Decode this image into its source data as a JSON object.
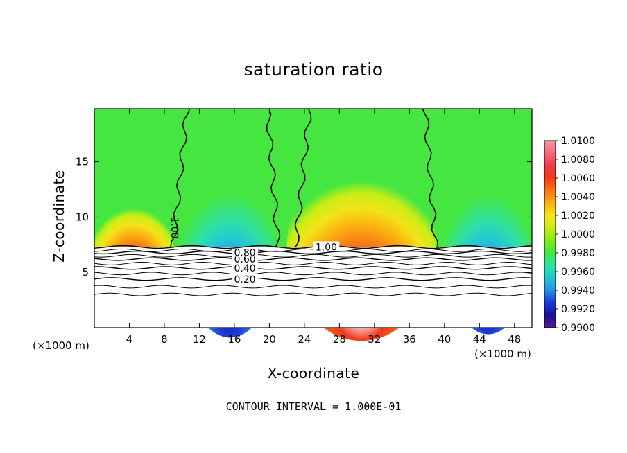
{
  "chart_data": {
    "type": "heatmap",
    "title": "saturation ratio",
    "xlabel": "X-coordinate",
    "ylabel": "Z-coordinate",
    "x_unit_label": "(×1000 m)",
    "x_unit_label_right": "(×1000 m)",
    "xlim": [
      0,
      50
    ],
    "ylim": [
      0,
      19.8
    ],
    "x_ticks": [
      4,
      8,
      12,
      16,
      20,
      24,
      28,
      32,
      36,
      40,
      44,
      48
    ],
    "y_ticks": [
      5,
      10,
      15
    ],
    "colorbar": {
      "ticks": [
        "1.0100",
        "1.0080",
        "1.0060",
        "1.0040",
        "1.0020",
        "1.0000",
        "0.9980",
        "0.9960",
        "0.9940",
        "0.9920",
        "0.9900"
      ],
      "colors": [
        "#5a1a8c",
        "#1a0f96",
        "#1c3ad8",
        "#2590e6",
        "#22c7d4",
        "#2ee0a6",
        "#45e640",
        "#83ea18",
        "#c8ee14",
        "#f2e41a",
        "#fbb010",
        "#f97416",
        "#f03a1a",
        "#f23a45",
        "#f56a78",
        "#f896a0"
      ]
    },
    "cloud_base_z": 7.3,
    "contour_lines": [
      {
        "level": "0.20",
        "z": 4.4
      },
      {
        "level": "0.40",
        "z": 5.4
      },
      {
        "level": "0.60",
        "z": 6.2
      },
      {
        "level": "0.80",
        "z": 6.8
      },
      {
        "level": "1.00",
        "z": 7.3
      }
    ],
    "extra_contour_z": [
      3.0,
      3.7,
      4.9,
      5.8,
      6.5,
      7.0
    ],
    "contour_interval_text": "CONTOUR INTERVAL = 1.000E-01",
    "cells": [
      {
        "x": [
          0,
          9
        ],
        "ymax": 12.3,
        "type": "supersat",
        "peak": 1.008
      },
      {
        "x": [
          10,
          21
        ],
        "ymax": 15.5,
        "type": "subsat",
        "peak": 0.991
      },
      {
        "x": [
          22,
          39
        ],
        "ymax": 15.8,
        "type": "supersat",
        "peak": 1.009
      },
      {
        "x": [
          40,
          50
        ],
        "ymax": 15.2,
        "type": "subsat",
        "peak": 0.9905
      }
    ]
  }
}
